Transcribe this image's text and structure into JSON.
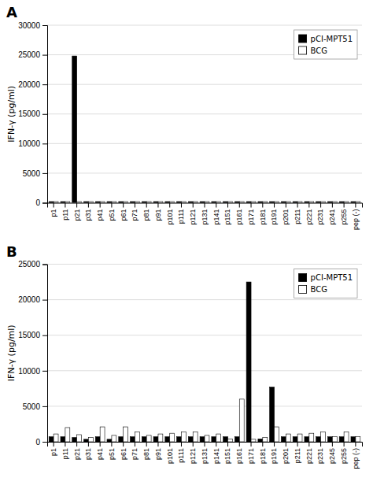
{
  "chart_data": [
    {
      "type": "bar",
      "title": "A",
      "categories": [
        "p1",
        "p11",
        "p21",
        "p31",
        "p41",
        "p51",
        "p61",
        "p71",
        "p81",
        "p91",
        "p101",
        "p111",
        "p121",
        "p131",
        "p141",
        "p151",
        "p161",
        "p171",
        "p181",
        "p191",
        "p201",
        "p211",
        "p221",
        "p231",
        "p241",
        "p255",
        "pep (-)"
      ],
      "series": [
        {
          "name": "pCI-MPT51",
          "color": "#000000",
          "values": [
            200,
            200,
            24800,
            200,
            200,
            200,
            200,
            200,
            200,
            200,
            200,
            200,
            200,
            200,
            200,
            200,
            200,
            200,
            200,
            200,
            200,
            200,
            200,
            200,
            200,
            200,
            200
          ]
        },
        {
          "name": "BCG",
          "color": "#ffffff",
          "values": [
            200,
            200,
            200,
            200,
            200,
            200,
            200,
            200,
            200,
            200,
            200,
            200,
            200,
            200,
            200,
            200,
            200,
            200,
            200,
            200,
            200,
            200,
            200,
            200,
            200,
            200,
            200
          ]
        }
      ],
      "ylabel": "IFN-γ (pg/ml)",
      "ylim": [
        0,
        30000
      ],
      "yticks": [
        0,
        5000,
        10000,
        15000,
        20000,
        25000,
        30000
      ],
      "grid": true,
      "legend": "upper right"
    },
    {
      "type": "bar",
      "title": "B",
      "categories": [
        "p1",
        "p11",
        "p21",
        "p31",
        "p41",
        "p51",
        "p61",
        "p71",
        "p81",
        "p91",
        "p101",
        "p111",
        "p121",
        "p131",
        "p141",
        "p151",
        "p161",
        "p171",
        "p181",
        "p191",
        "p201",
        "p211",
        "p221",
        "p231",
        "p245",
        "p255",
        "pep (-)"
      ],
      "series": [
        {
          "name": "pCI-MPT51",
          "color": "#000000",
          "values": [
            700,
            700,
            600,
            350,
            700,
            350,
            700,
            700,
            700,
            700,
            700,
            700,
            700,
            700,
            700,
            700,
            700,
            22500,
            400,
            7700,
            700,
            700,
            700,
            700,
            700,
            700,
            700
          ]
        },
        {
          "name": "BCG",
          "color": "#ffffff",
          "values": [
            1100,
            2000,
            1000,
            600,
            2100,
            900,
            2100,
            1400,
            900,
            1100,
            1200,
            1400,
            1400,
            900,
            1100,
            400,
            6000,
            350,
            600,
            2100,
            1100,
            1100,
            1200,
            1400,
            700,
            1400,
            700
          ]
        }
      ],
      "ylabel": "IFN-γ (pg/ml)",
      "ylim": [
        0,
        25000
      ],
      "yticks": [
        0,
        5000,
        10000,
        15000,
        20000,
        25000
      ],
      "grid": true,
      "legend": "upper right"
    }
  ]
}
